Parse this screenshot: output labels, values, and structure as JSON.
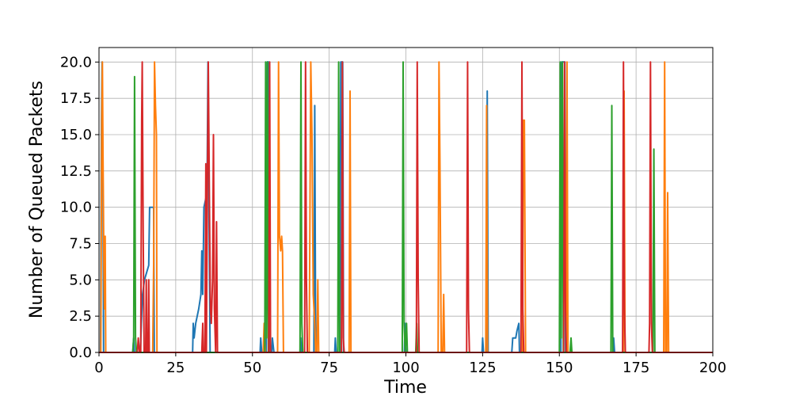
{
  "chart_data": {
    "type": "line",
    "title": "",
    "xlabel": "Time",
    "ylabel": "Number of Queued Packets",
    "xlim": [
      0,
      200
    ],
    "ylim": [
      0,
      21
    ],
    "grid": true,
    "legend": "none",
    "xticks": [
      0,
      25,
      50,
      75,
      100,
      125,
      150,
      175,
      200
    ],
    "xtick_labels": [
      "0",
      "25",
      "50",
      "75",
      "100",
      "125",
      "150",
      "175",
      "200"
    ],
    "yticks": [
      0,
      2.5,
      5,
      7.5,
      10,
      12.5,
      15,
      17.5,
      20
    ],
    "ytick_labels": [
      "0.0",
      "2.5",
      "5.0",
      "7.5",
      "10.0",
      "12.5",
      "15.0",
      "17.5",
      "20.0"
    ],
    "series": [
      {
        "color": "#1f77b4",
        "points": [
          [
            0,
            0
          ],
          [
            0.5,
            0
          ],
          [
            0.8,
            16
          ],
          [
            1.0,
            20
          ],
          [
            1.3,
            12
          ],
          [
            1.5,
            0
          ],
          [
            11,
            0
          ],
          [
            11.3,
            1
          ],
          [
            11.6,
            0
          ],
          [
            13.5,
            0
          ],
          [
            13.8,
            2
          ],
          [
            14.2,
            4
          ],
          [
            14.8,
            5
          ],
          [
            15.5,
            5.5
          ],
          [
            16.2,
            6
          ],
          [
            16.5,
            10
          ],
          [
            17.8,
            10
          ],
          [
            18,
            0
          ],
          [
            30.5,
            0
          ],
          [
            30.7,
            2
          ],
          [
            31,
            1
          ],
          [
            31.5,
            2
          ],
          [
            32.5,
            3
          ],
          [
            33.2,
            4
          ],
          [
            33.5,
            7
          ],
          [
            33.8,
            4
          ],
          [
            34.2,
            10
          ],
          [
            35.2,
            11
          ],
          [
            35.5,
            20
          ],
          [
            35.8,
            11
          ],
          [
            36.2,
            0
          ],
          [
            52.5,
            0
          ],
          [
            52.7,
            1
          ],
          [
            53,
            0
          ],
          [
            54.5,
            0
          ],
          [
            54.8,
            20
          ],
          [
            55.3,
            20
          ],
          [
            55.5,
            0
          ],
          [
            56.3,
            0
          ],
          [
            56.5,
            1
          ],
          [
            57,
            0
          ],
          [
            65.5,
            0
          ],
          [
            65.7,
            1
          ],
          [
            66,
            0
          ],
          [
            70,
            0
          ],
          [
            70.3,
            17
          ],
          [
            70.6,
            0
          ],
          [
            76.8,
            0
          ],
          [
            77,
            1
          ],
          [
            77.3,
            0
          ],
          [
            78.5,
            0
          ],
          [
            78.8,
            20
          ],
          [
            79.4,
            20
          ],
          [
            79.7,
            0
          ],
          [
            99.5,
            0
          ],
          [
            99.7,
            2
          ],
          [
            100,
            0
          ],
          [
            124.8,
            0
          ],
          [
            125,
            1
          ],
          [
            125.3,
            0
          ],
          [
            126.2,
            0
          ],
          [
            126.5,
            18
          ],
          [
            126.8,
            0
          ],
          [
            134.5,
            0
          ],
          [
            134.8,
            1
          ],
          [
            135.8,
            1
          ],
          [
            136.2,
            1.5
          ],
          [
            136.8,
            2
          ],
          [
            137,
            0
          ],
          [
            150.5,
            0
          ],
          [
            150.7,
            20
          ],
          [
            151.8,
            20
          ],
          [
            152,
            0
          ],
          [
            167.5,
            0
          ],
          [
            167.7,
            1
          ],
          [
            168,
            0
          ],
          [
            200,
            0
          ]
        ]
      },
      {
        "color": "#ff7f0e",
        "points": [
          [
            0,
            0
          ],
          [
            0.6,
            0
          ],
          [
            0.9,
            16
          ],
          [
            1.1,
            20
          ],
          [
            1.3,
            14
          ],
          [
            1.6,
            6
          ],
          [
            1.8,
            3
          ],
          [
            2,
            8
          ],
          [
            2.2,
            0
          ],
          [
            17.5,
            0
          ],
          [
            17.8,
            6
          ],
          [
            18.1,
            20
          ],
          [
            18.4,
            17
          ],
          [
            18.7,
            15
          ],
          [
            18.9,
            0
          ],
          [
            53.5,
            0
          ],
          [
            53.8,
            2
          ],
          [
            54.2,
            0
          ],
          [
            58.2,
            0
          ],
          [
            58.5,
            20
          ],
          [
            58.8,
            8
          ],
          [
            59.2,
            7
          ],
          [
            59.5,
            8
          ],
          [
            59.8,
            7
          ],
          [
            60.1,
            0
          ],
          [
            68.5,
            0
          ],
          [
            69,
            20
          ],
          [
            69.4,
            15
          ],
          [
            69.8,
            4
          ],
          [
            70.3,
            2
          ],
          [
            70.6,
            0
          ],
          [
            71,
            0
          ],
          [
            71.3,
            5
          ],
          [
            71.6,
            0
          ],
          [
            81.5,
            0
          ],
          [
            81.8,
            18
          ],
          [
            82.1,
            0
          ],
          [
            110.5,
            0
          ],
          [
            110.8,
            20
          ],
          [
            111.1,
            13
          ],
          [
            111.5,
            0
          ],
          [
            112,
            0
          ],
          [
            112.3,
            4
          ],
          [
            112.6,
            0
          ],
          [
            126,
            0
          ],
          [
            126.3,
            17
          ],
          [
            126.6,
            0
          ],
          [
            138,
            0
          ],
          [
            138.3,
            16
          ],
          [
            138.6,
            16
          ],
          [
            139,
            0
          ],
          [
            152.2,
            0
          ],
          [
            152.5,
            20
          ],
          [
            152.8,
            0
          ],
          [
            170.8,
            0
          ],
          [
            171.1,
            18
          ],
          [
            171.4,
            0
          ],
          [
            184,
            0
          ],
          [
            184.3,
            20
          ],
          [
            184.6,
            0
          ],
          [
            185,
            0
          ],
          [
            185.3,
            11
          ],
          [
            185.6,
            0
          ],
          [
            200,
            0
          ]
        ]
      },
      {
        "color": "#2ca02c",
        "points": [
          [
            0,
            0
          ],
          [
            11,
            0
          ],
          [
            11.3,
            1
          ],
          [
            11.6,
            19
          ],
          [
            11.9,
            1
          ],
          [
            12.2,
            0
          ],
          [
            54,
            0
          ],
          [
            54.3,
            20
          ],
          [
            54.6,
            1
          ],
          [
            54.9,
            20
          ],
          [
            55.2,
            0
          ],
          [
            65.5,
            0
          ],
          [
            65.8,
            20
          ],
          [
            66.1,
            2
          ],
          [
            66.4,
            0
          ],
          [
            77.8,
            0
          ],
          [
            78.1,
            20
          ],
          [
            78.4,
            0
          ],
          [
            98.8,
            0
          ],
          [
            99.1,
            20
          ],
          [
            99.4,
            2
          ],
          [
            99.8,
            0
          ],
          [
            100.2,
            2
          ],
          [
            100.5,
            0
          ],
          [
            103.2,
            0
          ],
          [
            103.5,
            2
          ],
          [
            103.8,
            0
          ],
          [
            150,
            0
          ],
          [
            150.3,
            20
          ],
          [
            150.6,
            1
          ],
          [
            151,
            20
          ],
          [
            151.3,
            0
          ],
          [
            153.5,
            0
          ],
          [
            153.8,
            1
          ],
          [
            154.1,
            0
          ],
          [
            166.8,
            0
          ],
          [
            167.1,
            17
          ],
          [
            167.4,
            0
          ],
          [
            180.5,
            0
          ],
          [
            180.8,
            14
          ],
          [
            181.1,
            0
          ],
          [
            200,
            0
          ]
        ]
      },
      {
        "color": "#d62728",
        "points": [
          [
            0,
            0
          ],
          [
            12.5,
            0
          ],
          [
            12.8,
            1
          ],
          [
            13.2,
            0
          ],
          [
            13.6,
            0
          ],
          [
            13.9,
            16
          ],
          [
            14.1,
            20
          ],
          [
            14.4,
            8
          ],
          [
            14.7,
            0
          ],
          [
            15.2,
            0
          ],
          [
            15.4,
            5
          ],
          [
            15.6,
            0
          ],
          [
            16,
            0
          ],
          [
            16.2,
            5
          ],
          [
            16.4,
            0
          ],
          [
            33.5,
            0
          ],
          [
            33.8,
            2
          ],
          [
            34,
            0
          ],
          [
            34.5,
            0
          ],
          [
            34.8,
            13
          ],
          [
            35,
            0
          ],
          [
            35.3,
            11
          ],
          [
            35.6,
            20
          ],
          [
            36,
            10
          ],
          [
            36.3,
            3
          ],
          [
            36.6,
            2
          ],
          [
            37,
            5
          ],
          [
            37.3,
            15
          ],
          [
            37.6,
            3
          ],
          [
            38,
            0
          ],
          [
            38.3,
            9
          ],
          [
            38.6,
            0
          ],
          [
            55.3,
            0
          ],
          [
            55.6,
            20
          ],
          [
            55.9,
            0
          ],
          [
            67,
            0
          ],
          [
            67.3,
            20
          ],
          [
            67.6,
            5
          ],
          [
            67.9,
            0
          ],
          [
            79,
            0
          ],
          [
            79.3,
            20
          ],
          [
            79.6,
            1
          ],
          [
            79.9,
            0
          ],
          [
            103.4,
            0
          ],
          [
            103.7,
            20
          ],
          [
            104,
            5
          ],
          [
            104.3,
            0
          ],
          [
            119.8,
            0
          ],
          [
            120.1,
            20
          ],
          [
            120.4,
            3
          ],
          [
            120.7,
            0
          ],
          [
            137.5,
            0
          ],
          [
            137.8,
            20
          ],
          [
            138.1,
            3
          ],
          [
            138.4,
            0
          ],
          [
            151.4,
            0
          ],
          [
            151.7,
            20
          ],
          [
            152,
            3
          ],
          [
            152.3,
            0
          ],
          [
            170.6,
            0
          ],
          [
            170.9,
            20
          ],
          [
            171.2,
            3
          ],
          [
            171.5,
            0
          ],
          [
            179.2,
            0
          ],
          [
            179.4,
            2
          ],
          [
            179.7,
            20
          ],
          [
            180,
            2
          ],
          [
            180.3,
            0
          ],
          [
            200,
            0
          ]
        ]
      }
    ]
  }
}
